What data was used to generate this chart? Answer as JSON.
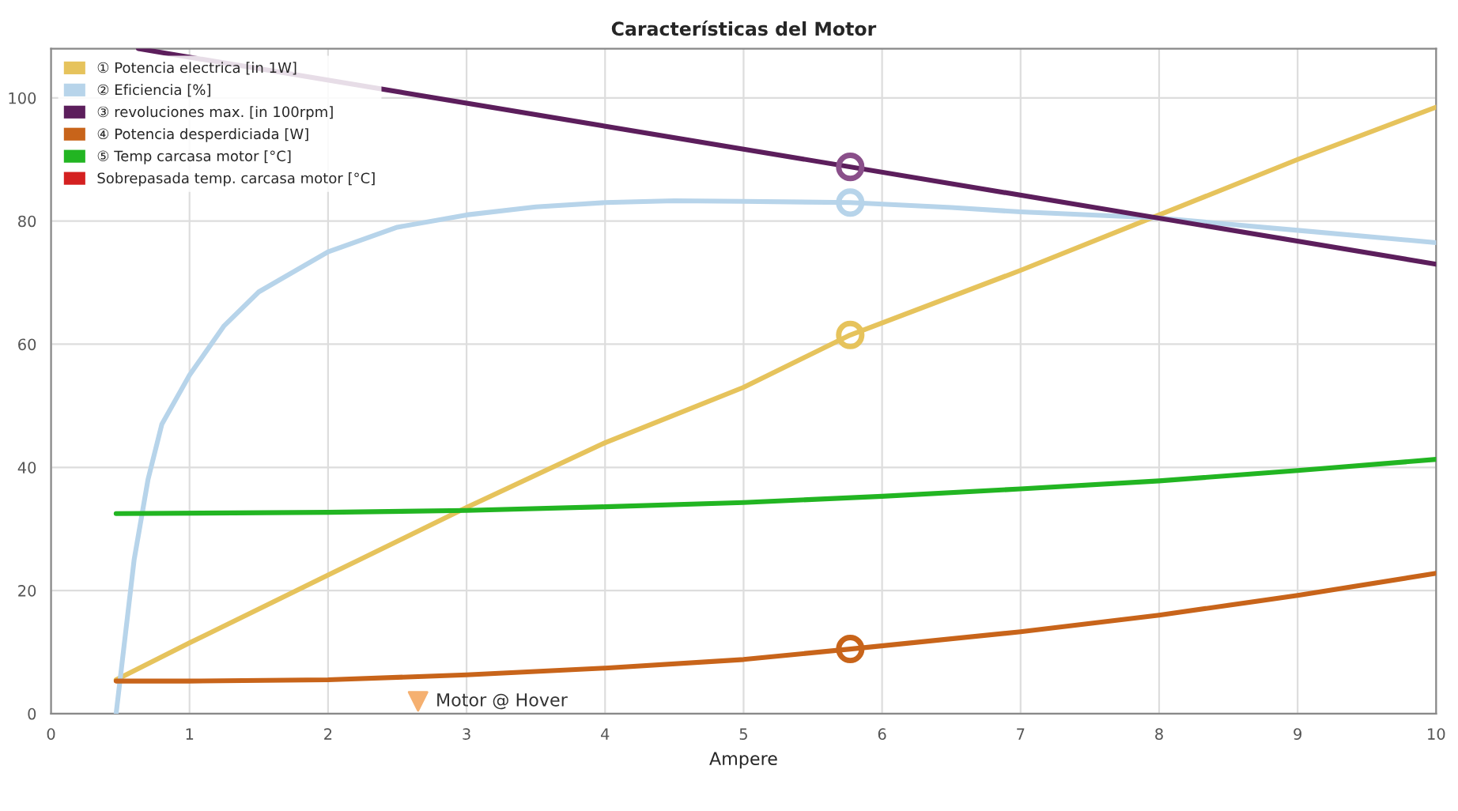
{
  "chart_data": {
    "type": "line",
    "title": "Características del Motor",
    "xlabel": "Ampere",
    "xlim": [
      0,
      10
    ],
    "ylim": [
      0,
      108
    ],
    "xticks": [
      0,
      1,
      2,
      3,
      4,
      5,
      6,
      7,
      8,
      9,
      10
    ],
    "yticks": [
      0,
      20,
      40,
      60,
      80,
      100
    ],
    "grid": true,
    "legend": "top left",
    "line_style": "solid",
    "series": [
      {
        "name": "① Potencia electrica [in 1W]",
        "color": "#e6c35c",
        "x": [
          0.47,
          1,
          2,
          3,
          4,
          5,
          5.77,
          7,
          8,
          9,
          10
        ],
        "values": [
          5.5,
          11.5,
          22.5,
          33.5,
          44,
          53,
          61.5,
          72,
          81,
          90,
          98.5
        ]
      },
      {
        "name": "② Eficiencia [%]",
        "color": "#b7d4ea",
        "x": [
          0.47,
          0.6,
          0.7,
          0.8,
          1,
          1.25,
          1.5,
          2,
          2.5,
          3,
          3.5,
          4,
          4.5,
          5,
          5.77,
          6.5,
          7,
          8,
          9,
          10
        ],
        "values": [
          0,
          25,
          38,
          47,
          55,
          63,
          68.5,
          75,
          79,
          81,
          82.3,
          83,
          83.3,
          83.2,
          83,
          82.2,
          81.5,
          80.5,
          78.5,
          76.5
        ]
      },
      {
        "name": "③ revoluciones max. [in 100rpm]",
        "color": "#5c1e5c",
        "x": [
          0.63,
          10
        ],
        "values": [
          108,
          73
        ]
      },
      {
        "name": "④ Potencia desperdiciada [W]",
        "color": "#c8641a",
        "x": [
          0.47,
          1,
          2,
          3,
          4,
          5,
          5.77,
          7,
          8,
          9,
          10
        ],
        "values": [
          5.3,
          5.3,
          5.5,
          6.3,
          7.4,
          8.8,
          10.5,
          13.3,
          16,
          19.2,
          22.8
        ]
      },
      {
        "name": "⑤ Temp carcasa motor [°C]",
        "color": "#22b522",
        "x": [
          0.47,
          2,
          3,
          4,
          5,
          6,
          7,
          8,
          9,
          10
        ],
        "values": [
          32.5,
          32.7,
          33,
          33.6,
          34.3,
          35.3,
          36.5,
          37.8,
          39.5,
          41.3
        ]
      },
      {
        "name": "Sobrepasada temp. carcasa motor [°C]",
        "color": "#d42020"
      },
      {
        "type": "scatter",
        "marker": "circle",
        "x": [
          5.77,
          5.77,
          5.77,
          5.77
        ],
        "values": [
          61.5,
          83,
          88.8,
          10.5
        ],
        "colors": [
          "#e6c35c",
          "#b7d4ea",
          "#8a4f8a",
          "#c8641a"
        ]
      }
    ],
    "annotations": [
      {
        "text": "Motor @ Hover",
        "x": 2.65,
        "y": 2
      }
    ]
  }
}
